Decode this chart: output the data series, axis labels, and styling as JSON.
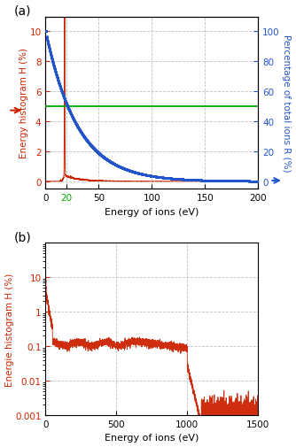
{
  "panel_a": {
    "title": "(a)",
    "xlabel": "Energy of ions (eV)",
    "ylabel_left": "Energy histogram H (%)",
    "ylabel_right": "Percentage of total ions R (%)",
    "xlim": [
      0,
      200
    ],
    "ylim_left": [
      -0.5,
      11
    ],
    "ylim_right": [
      -5,
      110
    ],
    "xticks": [
      0,
      20,
      50,
      100,
      150,
      200
    ],
    "yticks_left": [
      0,
      2,
      4,
      6,
      8,
      10
    ],
    "yticks_right": [
      0,
      20,
      40,
      60,
      80,
      100
    ],
    "green_line_color": "#00aa00",
    "red_color": "#cc2200",
    "blue_color": "#2255cc"
  },
  "panel_b": {
    "title": "(b)",
    "xlabel": "Energy of ions (eV)",
    "ylabel": "Energie histogram H (%)",
    "xlim": [
      0,
      1500
    ],
    "ylim": [
      0.001,
      100
    ],
    "xticks": [
      0,
      500,
      1000,
      1500
    ],
    "yticks": [
      0.001,
      0.01,
      0.1,
      1,
      10
    ],
    "red_color": "#cc2200"
  }
}
